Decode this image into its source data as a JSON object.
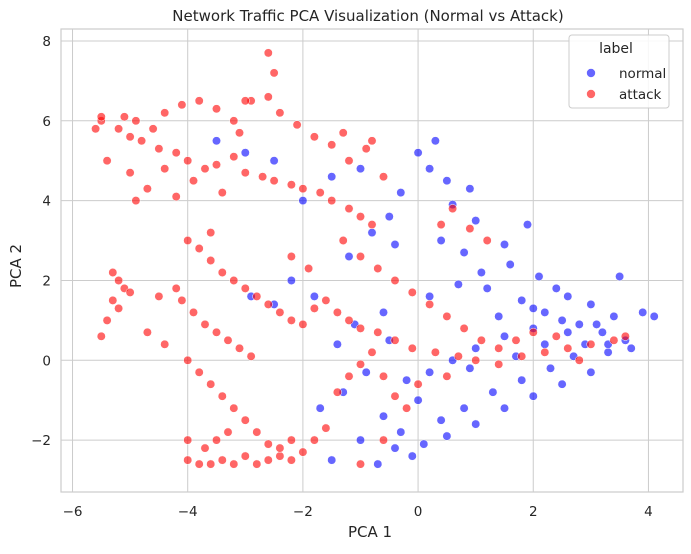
{
  "chart_data": {
    "type": "scatter",
    "title": "Network Traffic PCA Visualization (Normal vs Attack)",
    "xlabel": "PCA 1",
    "ylabel": "PCA 2",
    "xlim": [
      -6.2,
      4.6
    ],
    "ylim": [
      -3.3,
      8.3
    ],
    "x_ticks": [
      -6,
      -4,
      -2,
      0,
      2,
      4
    ],
    "y_ticks": [
      -2,
      0,
      2,
      4,
      6,
      8
    ],
    "x_tick_labels": [
      "−6",
      "−4",
      "−2",
      "0",
      "2",
      "4"
    ],
    "y_tick_labels": [
      "−2",
      "0",
      "2",
      "4",
      "6",
      "8"
    ],
    "grid": true,
    "legend": {
      "title": "label",
      "placement": "top-right",
      "entries": [
        {
          "name": "normal",
          "color": "#0000ff"
        },
        {
          "name": "attack",
          "color": "#ff0000"
        }
      ]
    },
    "colors": {
      "normal": "#0000ff",
      "attack": "#ff0000",
      "marker_edge": "#ffffff"
    },
    "point_alpha": 0.6,
    "series": [
      {
        "name": "normal",
        "color": "#0000ff",
        "points": [
          [
            0.2,
            4.8
          ],
          [
            0.5,
            4.5
          ],
          [
            -0.3,
            4.2
          ],
          [
            0.0,
            5.2
          ],
          [
            0.6,
            3.9
          ],
          [
            -0.5,
            3.6
          ],
          [
            0.9,
            4.3
          ],
          [
            0.3,
            5.5
          ],
          [
            -0.8,
            3.2
          ],
          [
            1.0,
            3.5
          ],
          [
            0.4,
            3.0
          ],
          [
            -1.2,
            2.6
          ],
          [
            -0.4,
            2.9
          ],
          [
            0.8,
            2.7
          ],
          [
            -1.0,
            4.8
          ],
          [
            -1.5,
            4.6
          ],
          [
            -2.0,
            4.0
          ],
          [
            -2.5,
            5.0
          ],
          [
            -3.0,
            5.2
          ],
          [
            -3.5,
            5.5
          ],
          [
            -2.2,
            2.0
          ],
          [
            -1.8,
            1.6
          ],
          [
            -0.6,
            1.2
          ],
          [
            0.2,
            1.6
          ],
          [
            1.2,
            1.8
          ],
          [
            1.8,
            1.5
          ],
          [
            2.2,
            1.2
          ],
          [
            2.5,
            1.0
          ],
          [
            2.8,
            0.9
          ],
          [
            3.2,
            0.7
          ],
          [
            3.6,
            0.5
          ],
          [
            2.0,
            0.8
          ],
          [
            1.5,
            0.6
          ],
          [
            1.0,
            0.3
          ],
          [
            0.6,
            0.0
          ],
          [
            0.2,
            -0.3
          ],
          [
            -0.2,
            -0.5
          ],
          [
            0.0,
            -1.0
          ],
          [
            0.4,
            -1.5
          ],
          [
            0.8,
            -1.2
          ],
          [
            1.3,
            -0.8
          ],
          [
            1.8,
            -0.5
          ],
          [
            2.3,
            -0.2
          ],
          [
            2.7,
            0.1
          ],
          [
            -0.3,
            -1.8
          ],
          [
            0.1,
            -2.1
          ],
          [
            -0.1,
            -2.4
          ],
          [
            0.5,
            -1.9
          ],
          [
            1.0,
            -1.6
          ],
          [
            1.5,
            -1.2
          ],
          [
            2.0,
            -0.9
          ],
          [
            2.5,
            -0.6
          ],
          [
            3.0,
            -0.3
          ],
          [
            3.3,
            0.2
          ],
          [
            2.4,
            1.8
          ],
          [
            2.1,
            2.1
          ],
          [
            1.6,
            2.4
          ],
          [
            3.0,
            1.4
          ],
          [
            3.4,
            1.1
          ],
          [
            2.6,
            1.6
          ],
          [
            3.9,
            1.2
          ],
          [
            4.1,
            1.1
          ],
          [
            3.5,
            2.1
          ],
          [
            1.9,
            3.4
          ],
          [
            1.5,
            2.9
          ],
          [
            1.1,
            2.2
          ],
          [
            0.7,
            1.9
          ],
          [
            -0.5,
            0.5
          ],
          [
            -1.1,
            0.9
          ],
          [
            -1.4,
            0.4
          ],
          [
            -2.5,
            1.4
          ],
          [
            -2.9,
            1.6
          ],
          [
            -0.9,
            -0.3
          ],
          [
            -1.3,
            -0.8
          ],
          [
            -1.7,
            -1.2
          ],
          [
            -0.6,
            -1.4
          ],
          [
            -1.0,
            -2.0
          ],
          [
            -0.4,
            -2.2
          ],
          [
            -1.5,
            -2.5
          ],
          [
            -0.7,
            -2.6
          ],
          [
            0.9,
            -0.2
          ],
          [
            1.7,
            0.1
          ],
          [
            2.2,
            0.4
          ],
          [
            2.9,
            0.4
          ],
          [
            3.3,
            0.4
          ],
          [
            3.7,
            0.3
          ],
          [
            3.1,
            0.9
          ],
          [
            2.6,
            0.7
          ],
          [
            2.0,
            1.3
          ],
          [
            1.4,
            1.1
          ]
        ]
      },
      {
        "name": "attack",
        "color": "#ff0000",
        "points": [
          [
            -5.5,
            6.0
          ],
          [
            -5.2,
            5.8
          ],
          [
            -5.0,
            5.6
          ],
          [
            -4.8,
            5.5
          ],
          [
            -4.5,
            5.3
          ],
          [
            -4.2,
            5.2
          ],
          [
            -4.0,
            5.0
          ],
          [
            -3.7,
            4.8
          ],
          [
            -3.5,
            4.9
          ],
          [
            -3.2,
            5.1
          ],
          [
            -3.0,
            4.7
          ],
          [
            -2.7,
            4.6
          ],
          [
            -2.5,
            4.5
          ],
          [
            -2.2,
            4.4
          ],
          [
            -2.0,
            4.3
          ],
          [
            -1.7,
            4.2
          ],
          [
            -1.5,
            4.0
          ],
          [
            -1.2,
            3.8
          ],
          [
            -1.0,
            3.6
          ],
          [
            -0.8,
            3.4
          ],
          [
            -5.4,
            5.0
          ],
          [
            -5.6,
            5.8
          ],
          [
            -5.1,
            6.1
          ],
          [
            -4.9,
            6.0
          ],
          [
            -4.4,
            6.2
          ],
          [
            -4.1,
            6.4
          ],
          [
            -3.8,
            6.5
          ],
          [
            -3.5,
            6.3
          ],
          [
            -3.2,
            6.0
          ],
          [
            -2.9,
            6.5
          ],
          [
            -2.6,
            6.6
          ],
          [
            -2.4,
            6.2
          ],
          [
            -2.1,
            5.9
          ],
          [
            -1.8,
            5.6
          ],
          [
            -1.5,
            5.4
          ],
          [
            -1.2,
            5.0
          ],
          [
            -0.9,
            5.3
          ],
          [
            -0.6,
            4.6
          ],
          [
            -3.4,
            4.2
          ],
          [
            -3.9,
            4.5
          ],
          [
            -4.4,
            4.8
          ],
          [
            -4.7,
            4.3
          ],
          [
            -4.2,
            4.1
          ],
          [
            -5.3,
            2.2
          ],
          [
            -5.2,
            2.0
          ],
          [
            -5.1,
            1.8
          ],
          [
            -5.3,
            1.5
          ],
          [
            -5.0,
            1.7
          ],
          [
            -5.2,
            1.3
          ],
          [
            -5.4,
            1.0
          ],
          [
            -4.0,
            3.0
          ],
          [
            -3.8,
            2.8
          ],
          [
            -3.6,
            2.5
          ],
          [
            -3.4,
            2.2
          ],
          [
            -3.2,
            2.0
          ],
          [
            -3.0,
            1.8
          ],
          [
            -2.8,
            1.6
          ],
          [
            -2.6,
            1.4
          ],
          [
            -2.4,
            1.2
          ],
          [
            -2.2,
            1.0
          ],
          [
            -2.0,
            0.9
          ],
          [
            -1.8,
            1.3
          ],
          [
            -1.6,
            1.5
          ],
          [
            -1.4,
            1.2
          ],
          [
            -1.2,
            1.0
          ],
          [
            -1.0,
            0.8
          ],
          [
            -0.7,
            0.7
          ],
          [
            -0.4,
            0.5
          ],
          [
            -0.1,
            0.3
          ],
          [
            0.3,
            0.2
          ],
          [
            0.7,
            0.1
          ],
          [
            1.0,
            0.0
          ],
          [
            1.4,
            -0.1
          ],
          [
            1.8,
            0.1
          ],
          [
            2.2,
            0.2
          ],
          [
            2.6,
            0.3
          ],
          [
            3.0,
            0.4
          ],
          [
            3.4,
            0.5
          ],
          [
            3.6,
            0.6
          ],
          [
            2.8,
            0.0
          ],
          [
            -4.1,
            1.5
          ],
          [
            -3.9,
            1.2
          ],
          [
            -3.7,
            0.9
          ],
          [
            -3.5,
            0.7
          ],
          [
            -3.3,
            0.5
          ],
          [
            -3.1,
            0.3
          ],
          [
            -2.9,
            0.1
          ],
          [
            -4.0,
            0.0
          ],
          [
            -3.8,
            -0.3
          ],
          [
            -3.6,
            -0.6
          ],
          [
            -3.4,
            -0.9
          ],
          [
            -3.2,
            -1.2
          ],
          [
            -3.0,
            -1.5
          ],
          [
            -2.8,
            -1.8
          ],
          [
            -2.6,
            -2.1
          ],
          [
            -2.4,
            -2.4
          ],
          [
            -2.2,
            -2.5
          ],
          [
            -2.0,
            -2.3
          ],
          [
            -1.8,
            -2.0
          ],
          [
            -1.6,
            -1.7
          ],
          [
            -4.0,
            -2.5
          ],
          [
            -3.8,
            -2.6
          ],
          [
            -3.6,
            -2.6
          ],
          [
            -3.4,
            -2.5
          ],
          [
            -3.2,
            -2.6
          ],
          [
            -3.0,
            -2.4
          ],
          [
            -2.8,
            -2.6
          ],
          [
            -2.6,
            -2.5
          ],
          [
            -2.4,
            -2.2
          ],
          [
            -2.2,
            -2.0
          ],
          [
            -4.0,
            -2.0
          ],
          [
            -3.7,
            -2.2
          ],
          [
            -3.5,
            -2.0
          ],
          [
            -3.3,
            -1.8
          ],
          [
            -1.4,
            -0.8
          ],
          [
            -1.2,
            -0.4
          ],
          [
            -1.0,
            -0.1
          ],
          [
            -0.8,
            0.2
          ],
          [
            -0.6,
            -0.4
          ],
          [
            -0.4,
            -0.9
          ],
          [
            -0.2,
            -1.2
          ],
          [
            0.0,
            -0.6
          ],
          [
            0.5,
            -0.4
          ],
          [
            -1.3,
            3.0
          ],
          [
            -1.0,
            2.6
          ],
          [
            -0.7,
            2.3
          ],
          [
            -0.4,
            2.0
          ],
          [
            -0.1,
            1.7
          ],
          [
            0.2,
            1.4
          ],
          [
            0.5,
            1.1
          ],
          [
            0.8,
            0.8
          ],
          [
            1.1,
            0.5
          ],
          [
            1.4,
            0.3
          ],
          [
            1.7,
            0.5
          ],
          [
            2.0,
            0.7
          ],
          [
            2.4,
            0.6
          ],
          [
            0.4,
            3.4
          ],
          [
            0.6,
            3.8
          ],
          [
            0.9,
            3.3
          ],
          [
            1.2,
            3.0
          ],
          [
            -2.6,
            7.7
          ],
          [
            -2.5,
            7.2
          ],
          [
            -3.0,
            6.5
          ],
          [
            -1.3,
            5.7
          ],
          [
            -0.8,
            5.5
          ],
          [
            -1.0,
            -2.6
          ],
          [
            -0.6,
            -2.0
          ],
          [
            -4.4,
            0.4
          ],
          [
            -4.7,
            0.7
          ],
          [
            -5.5,
            0.6
          ],
          [
            -4.5,
            1.6
          ],
          [
            -4.2,
            1.8
          ],
          [
            -3.6,
            3.2
          ],
          [
            -2.2,
            2.6
          ],
          [
            -1.9,
            2.3
          ],
          [
            -3.1,
            5.7
          ],
          [
            -4.9,
            4.0
          ],
          [
            -5.0,
            4.7
          ],
          [
            -4.6,
            5.8
          ],
          [
            -5.5,
            6.1
          ]
        ]
      }
    ]
  }
}
